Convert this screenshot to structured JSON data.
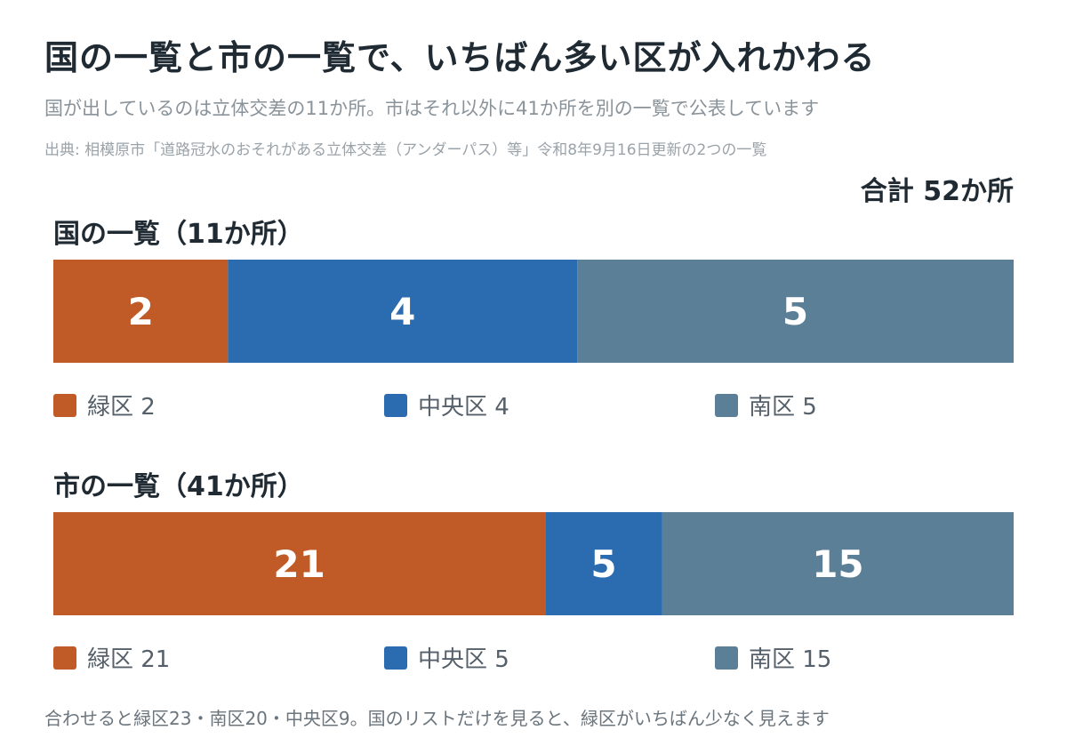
{
  "title": "国の一覧と市の一覧で、いちばん多い区が入れかわる",
  "subtitle": "国が出しているのは立体交差の11か所。市はそれ以外に41か所を別の一覧で公表しています",
  "source": "出典: 相模原市「道路冠水のおそれがある立体交差（アンダーパス）等」令和8年9月16日更新の2つの一覧",
  "total_label": "合計 52か所",
  "footnote": "合わせると緑区23・南区20・中央区9。国のリストだけを見ると、緑区がいちばん少なく見えます",
  "colors": {
    "midori": "#c05a26",
    "chuo": "#2b6cb0",
    "minami": "#5b7f96"
  },
  "chart_data": [
    {
      "type": "bar",
      "stacked": true,
      "orientation": "horizontal",
      "title": "国の一覧（11か所）",
      "categories": [
        "緑区",
        "中央区",
        "南区"
      ],
      "values": [
        2,
        4,
        5
      ],
      "legend": [
        "緑区 2",
        "中央区 4",
        "南区 5"
      ],
      "legend_placement": "bottom"
    },
    {
      "type": "bar",
      "stacked": true,
      "orientation": "horizontal",
      "title": "市の一覧（41か所）",
      "categories": [
        "緑区",
        "中央区",
        "南区"
      ],
      "values": [
        21,
        5,
        15
      ],
      "legend": [
        "緑区 21",
        "中央区 5",
        "南区 15"
      ],
      "legend_placement": "bottom"
    }
  ]
}
